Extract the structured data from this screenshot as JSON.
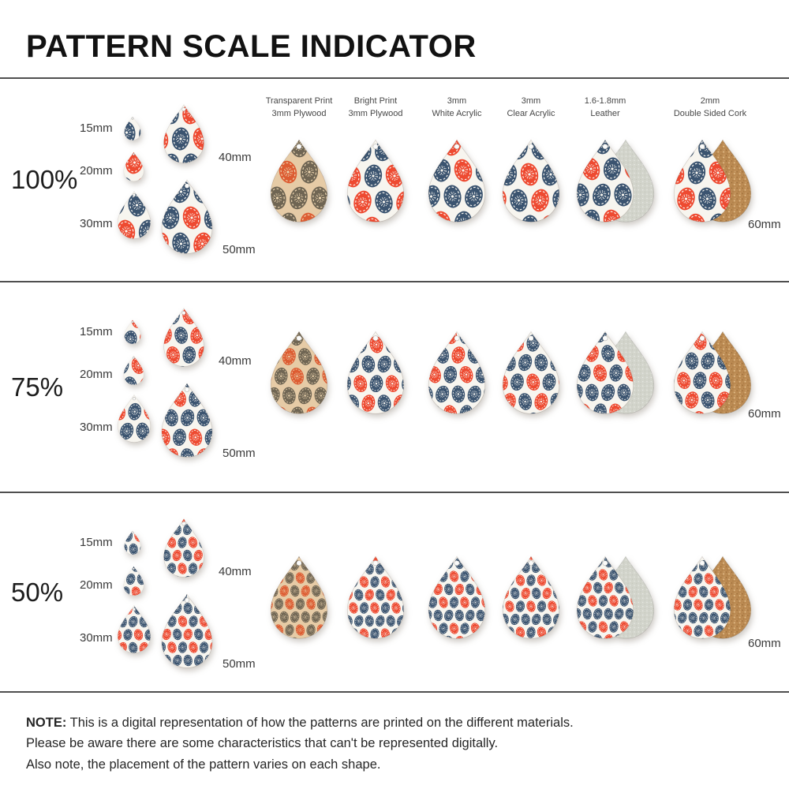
{
  "title": "PATTERN SCALE INDICATOR",
  "rows": [
    {
      "scale_label": "100%",
      "scale_key": "100"
    },
    {
      "scale_label": "75%",
      "scale_key": "75"
    },
    {
      "scale_label": "50%",
      "scale_key": "50"
    }
  ],
  "size_labels": {
    "s15": "15mm",
    "s20": "20mm",
    "s30": "30mm",
    "s40": "40mm",
    "s50": "50mm",
    "s60": "60mm"
  },
  "materials": [
    {
      "id": "plywood-transparent",
      "line1": "Transparent Print",
      "line2": "3mm Plywood"
    },
    {
      "id": "plywood-bright",
      "line1": "Bright Print",
      "line2": "3mm Plywood"
    },
    {
      "id": "acrylic-white",
      "line1": "3mm",
      "line2": "White Acrylic"
    },
    {
      "id": "acrylic-clear",
      "line1": "3mm",
      "line2": "Clear Acrylic"
    },
    {
      "id": "leather",
      "line1": "1.6-1.8mm",
      "line2": "Leather"
    },
    {
      "id": "cork",
      "line1": "2mm",
      "line2": "Double Sided Cork"
    }
  ],
  "note": {
    "prefix": "NOTE:",
    "line1": "This is a digital representation of how the patterns are printed on the different materials.",
    "line2": "Please be aware there are some characteristics that can't be represented digitally.",
    "line3": "Also note, the placement of the pattern varies on each shape."
  },
  "colors": {
    "pattern_navy": "#3b5470",
    "pattern_red": "#ee4a31",
    "white_base": "#f7f5ef",
    "white_decor": "#f8f6f0",
    "plywood_base": "#e6cba6",
    "plywood_egg_dark": "#6f6553",
    "plywood_egg_orange": "#dd5c32",
    "plywood_decor": "#ecd4ae",
    "suede_back": "#d2d4cb",
    "cork_back": "#bb8a52",
    "divider": "#4f4f4f"
  }
}
